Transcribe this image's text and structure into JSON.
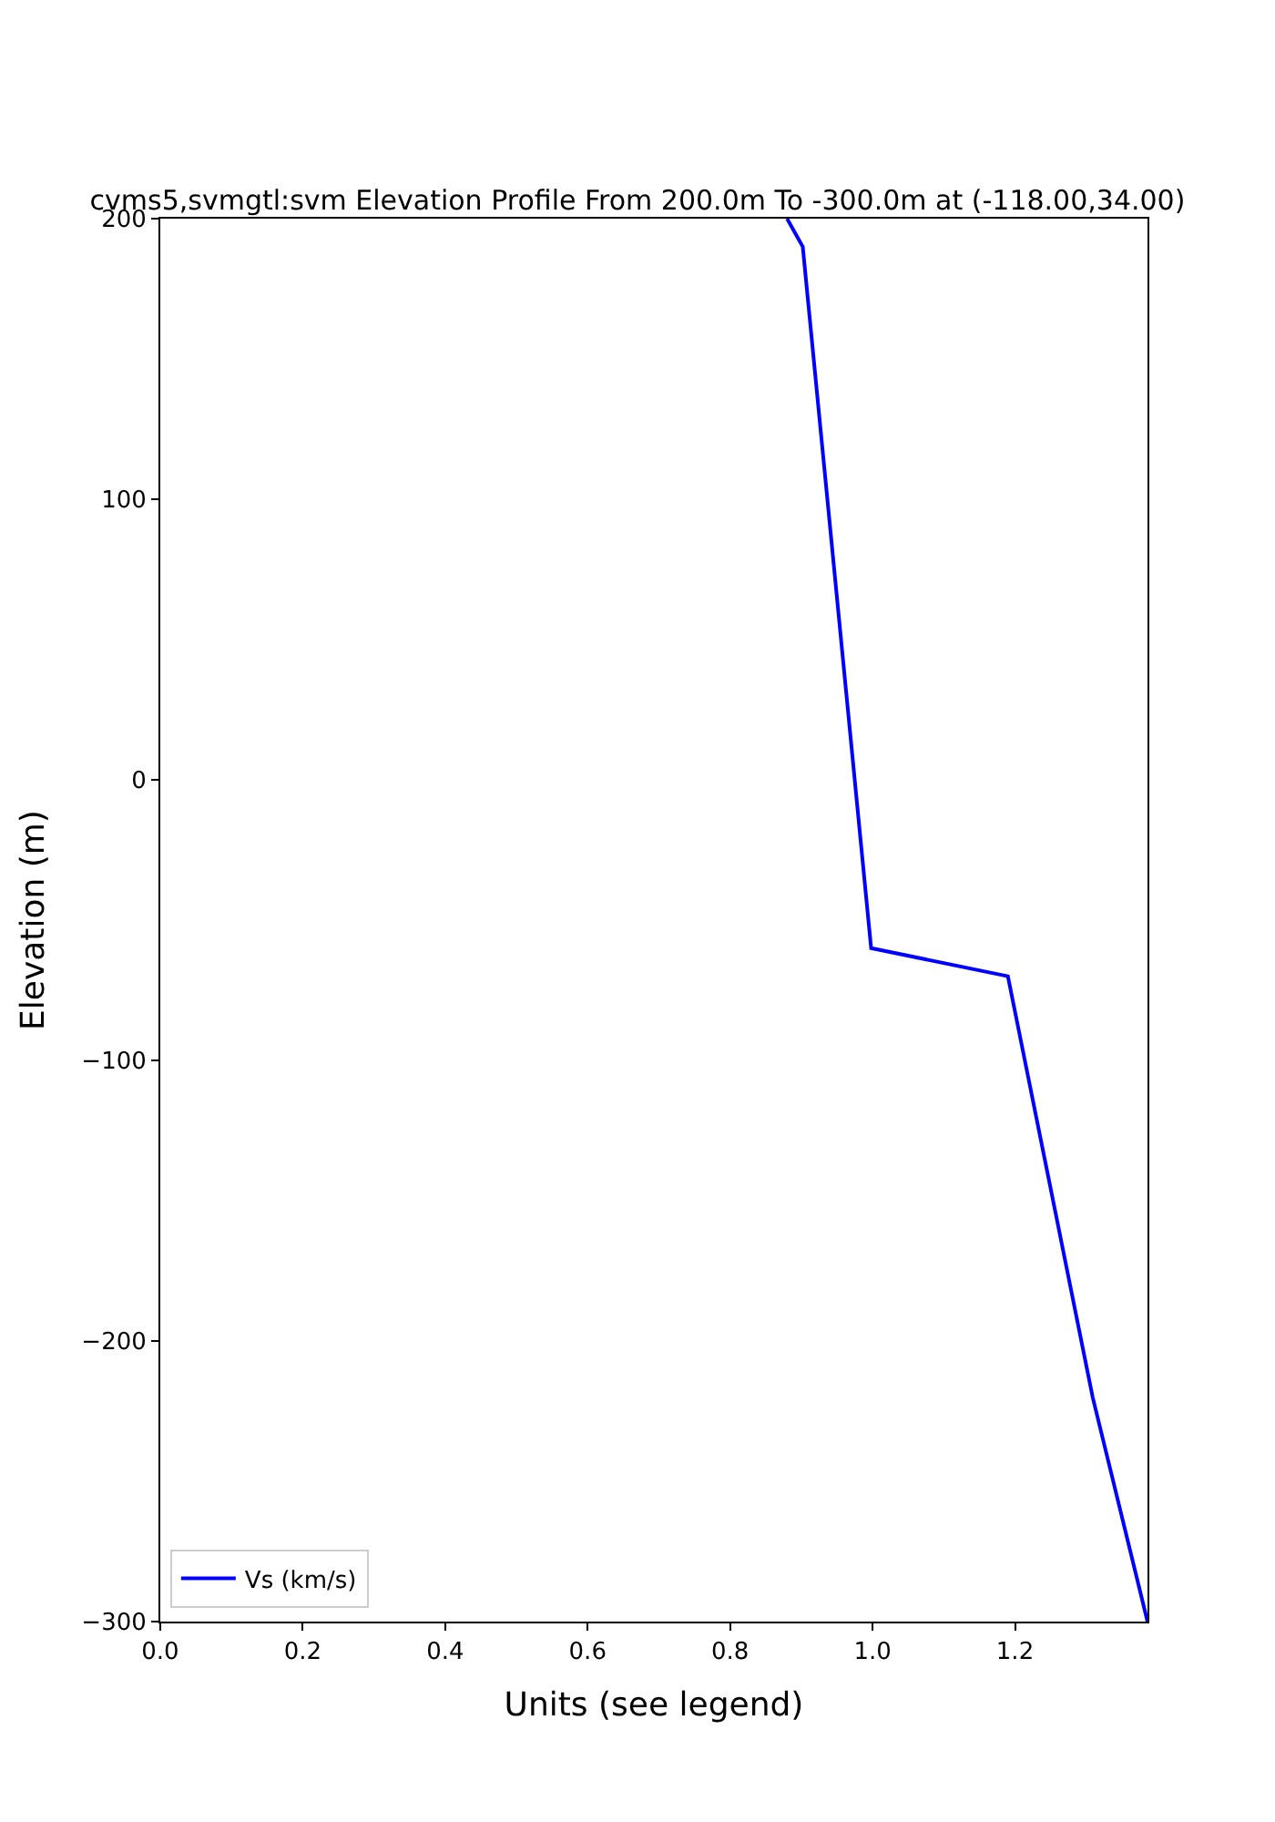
{
  "chart_data": {
    "type": "line",
    "title": "cvms5,svmgtl:svm Elevation Profile From 200.0m To -300.0m at (-118.00,34.00)",
    "xlabel": "Units (see legend)",
    "ylabel": "Elevation (m)",
    "series": [
      {
        "name": "Vs (km/s)",
        "color": "#0000ff",
        "x": [
          0.88,
          0.902,
          0.998,
          1.19,
          1.309,
          1.386
        ],
        "values": [
          200,
          190,
          -60,
          -70,
          -220,
          -300
        ]
      }
    ],
    "xlim": [
      0,
      1.386
    ],
    "xticks": [
      {
        "value": 0,
        "label": "0.0"
      },
      {
        "value": 0.2,
        "label": "0.2"
      },
      {
        "value": 0.4,
        "label": "0.4"
      },
      {
        "value": 0.6,
        "label": "0.6"
      },
      {
        "value": 0.8,
        "label": "0.8"
      },
      {
        "value": 1.0,
        "label": "1.0"
      },
      {
        "value": 1.2,
        "label": "1.2"
      }
    ],
    "ylim": [
      -300,
      200
    ],
    "yticks": [
      {
        "value": -300,
        "label": "−300"
      },
      {
        "value": -200,
        "label": "−200"
      },
      {
        "value": -100,
        "label": "−100"
      },
      0,
      100,
      200
    ],
    "legend": "bottom left",
    "marker": "none",
    "line_style": "solid"
  }
}
